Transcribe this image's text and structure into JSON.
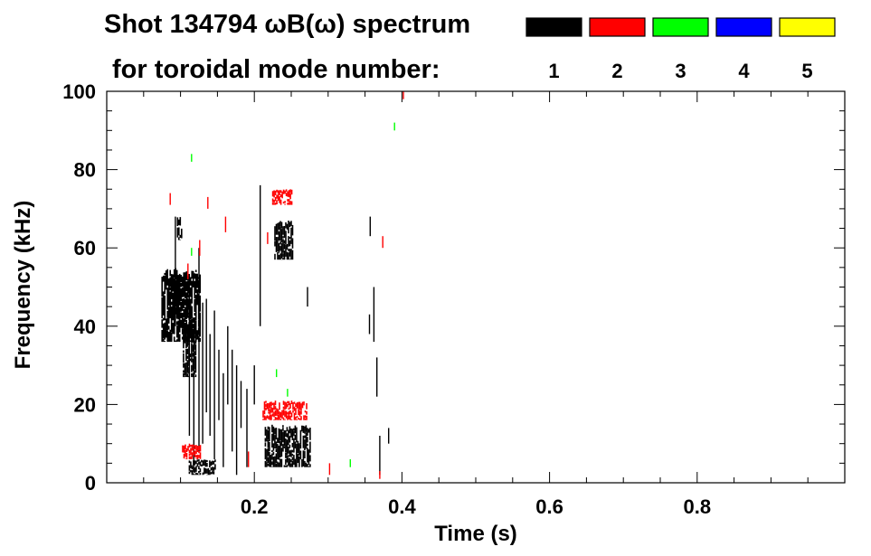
{
  "chart_data": {
    "type": "heatmap",
    "title": "Shot 134794 ωB(ω) spectrum",
    "legend_title": "for toroidal mode number:",
    "legend_placement": "top-right",
    "xlabel": "Time (s)",
    "ylabel": "Frequency (kHz)",
    "xlim": [
      0.0,
      1.0
    ],
    "ylim": [
      0,
      100
    ],
    "xticks": [
      0.2,
      0.4,
      0.6,
      0.8
    ],
    "xtick_labels": [
      "0.2",
      "0.4",
      "0.6",
      "0.8"
    ],
    "yticks": [
      0,
      20,
      40,
      60,
      80,
      100
    ],
    "ytick_labels": [
      "0",
      "20",
      "40",
      "60",
      "80",
      "100"
    ],
    "grid": false,
    "series": [
      {
        "name": "1",
        "color": "#000000",
        "regions": [
          {
            "t": [
              0.075,
              0.128
            ],
            "f": [
              36,
              55
            ]
          },
          {
            "t": [
              0.104,
              0.122
            ],
            "f": [
              27,
              40
            ]
          },
          {
            "t": [
              0.086,
              0.1
            ],
            "f": [
              42,
              52
            ]
          },
          {
            "t": [
              0.215,
              0.277
            ],
            "f": [
              4,
              15
            ]
          },
          {
            "t": [
              0.228,
              0.252
            ],
            "f": [
              57,
              67
            ]
          },
          {
            "t": [
              0.112,
              0.148
            ],
            "f": [
              2,
              6
            ]
          },
          {
            "t": [
              0.096,
              0.103
            ],
            "f": [
              62,
              68
            ]
          }
        ],
        "streaks": [
          {
            "t": 0.093,
            "f": [
              40,
              68
            ]
          },
          {
            "t": 0.112,
            "f": [
              12,
              52
            ]
          },
          {
            "t": 0.118,
            "f": [
              4,
              40
            ]
          },
          {
            "t": 0.125,
            "f": [
              8,
              60
            ]
          },
          {
            "t": 0.13,
            "f": [
              10,
              46
            ]
          },
          {
            "t": 0.135,
            "f": [
              18,
              47
            ]
          },
          {
            "t": 0.14,
            "f": [
              12,
              38
            ]
          },
          {
            "t": 0.146,
            "f": [
              6,
              44
            ]
          },
          {
            "t": 0.152,
            "f": [
              16,
              34
            ]
          },
          {
            "t": 0.158,
            "f": [
              4,
              28
            ]
          },
          {
            "t": 0.164,
            "f": [
              20,
              40
            ]
          },
          {
            "t": 0.17,
            "f": [
              8,
              34
            ]
          },
          {
            "t": 0.176,
            "f": [
              2,
              30
            ]
          },
          {
            "t": 0.182,
            "f": [
              14,
              26
            ]
          },
          {
            "t": 0.19,
            "f": [
              4,
              24
            ]
          },
          {
            "t": 0.2,
            "f": [
              20,
              30
            ]
          },
          {
            "t": 0.208,
            "f": [
              40,
              76
            ]
          },
          {
            "t": 0.362,
            "f": [
              36,
              50
            ]
          },
          {
            "t": 0.366,
            "f": [
              22,
              32
            ]
          },
          {
            "t": 0.356,
            "f": [
              38,
              43
            ]
          },
          {
            "t": 0.357,
            "f": [
              63,
              68
            ]
          },
          {
            "t": 0.37,
            "f": [
              2,
              12
            ]
          },
          {
            "t": 0.272,
            "f": [
              45,
              50
            ]
          },
          {
            "t": 0.382,
            "f": [
              10,
              14
            ]
          }
        ]
      },
      {
        "name": "2",
        "color": "#ff0000",
        "regions": [
          {
            "t": [
              0.212,
              0.272
            ],
            "f": [
              16,
              21
            ]
          },
          {
            "t": [
              0.225,
              0.252
            ],
            "f": [
              71,
              75
            ]
          },
          {
            "t": [
              0.103,
              0.127
            ],
            "f": [
              6,
              10
            ]
          }
        ],
        "streaks": [
          {
            "t": 0.11,
            "f": [
              52,
              56
            ]
          },
          {
            "t": 0.126,
            "f": [
              58,
              62
            ]
          },
          {
            "t": 0.137,
            "f": [
              70,
              73
            ]
          },
          {
            "t": 0.161,
            "f": [
              64,
              68
            ]
          },
          {
            "t": 0.192,
            "f": [
              4,
              8
            ]
          },
          {
            "t": 0.218,
            "f": [
              61,
              64
            ]
          },
          {
            "t": 0.302,
            "f": [
              2,
              5
            ]
          },
          {
            "t": 0.37,
            "f": [
              1,
              3
            ]
          },
          {
            "t": 0.402,
            "f": [
              98,
              100
            ]
          },
          {
            "t": 0.374,
            "f": [
              60,
              63
            ]
          },
          {
            "t": 0.086,
            "f": [
              71,
              74
            ]
          }
        ]
      },
      {
        "name": "3",
        "color": "#00ff00",
        "regions": [],
        "streaks": [
          {
            "t": 0.115,
            "f": [
              82,
              84
            ]
          },
          {
            "t": 0.23,
            "f": [
              27,
              29
            ]
          },
          {
            "t": 0.245,
            "f": [
              22,
              24
            ]
          },
          {
            "t": 0.39,
            "f": [
              90,
              92
            ]
          },
          {
            "t": 0.115,
            "f": [
              58,
              60
            ]
          },
          {
            "t": 0.33,
            "f": [
              4,
              6
            ]
          }
        ]
      },
      {
        "name": "4",
        "color": "#0000ff",
        "regions": [],
        "streaks": []
      },
      {
        "name": "5",
        "color": "#ffff00",
        "regions": [],
        "streaks": []
      }
    ]
  }
}
